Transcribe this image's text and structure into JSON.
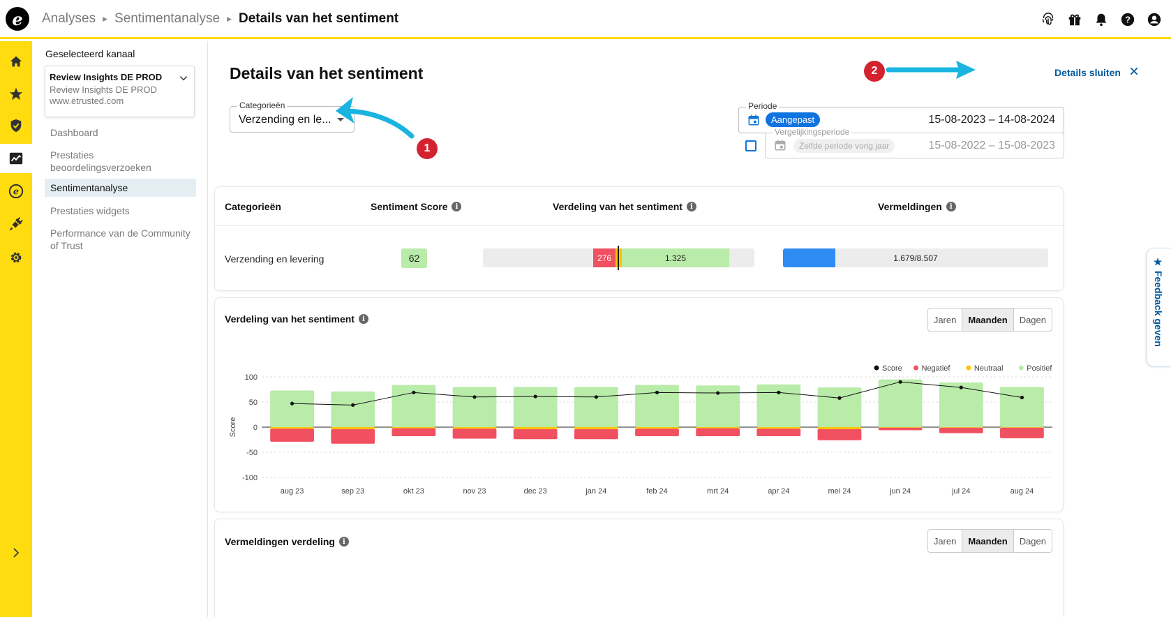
{
  "app": {
    "logo_letter": "e",
    "breadcrumb": [
      "Analyses",
      "Sentimentanalyse",
      "Details van het sentiment"
    ]
  },
  "topbar_icons": [
    "fingerprint-icon",
    "gift-icon",
    "bell-icon",
    "help-icon",
    "account-icon"
  ],
  "rail_icons": [
    "home-icon",
    "star-icon",
    "shield-check-icon",
    "analytics-icon",
    "etrusted-coin-icon",
    "plug-icon",
    "gear-icon",
    "chevron-right-icon"
  ],
  "sidebar": {
    "channel_label": "Geselecteerd kanaal",
    "channel_name": "Review Insights DE PROD",
    "channel_sub": "Review Insights DE PROD",
    "channel_url": "www.etrusted.com",
    "items": [
      {
        "label": "Dashboard",
        "active": false
      },
      {
        "label": "Prestaties beoordelingsverzoeken",
        "active": false
      },
      {
        "label": "Sentimentanalyse",
        "active": true
      },
      {
        "label": "Prestaties widgets",
        "active": false
      },
      {
        "label": "Performance van de Community of Trust",
        "active": false
      }
    ]
  },
  "main": {
    "title": "Details van het sentiment",
    "close_label": "Details sluiten",
    "categories_label": "Categorieën",
    "categories_value": "Verzending en le...",
    "periode_label": "Periode",
    "periode_pill": "Aangepast",
    "periode_range": "15-08-2023 – 14-08-2024",
    "vergelijk_label": "Vergelijkingsperiode",
    "vergelijk_pill": "Zelfde periode vorig jaar",
    "vergelijk_range": "15-08-2022 – 15-08-2023",
    "annotations": [
      "1",
      "2"
    ]
  },
  "summary_table": {
    "headers": [
      "Categorieën",
      "Sentiment Score",
      "Verdeling van het sentiment",
      "Vermeldingen"
    ],
    "row": {
      "category": "Verzending en levering",
      "score": "62",
      "negative": "276",
      "positive": "1.325",
      "mentions": "1.679/8.507",
      "mentions_fraction": 0.197
    }
  },
  "distribution_card": {
    "title": "Verdeling van het sentiment",
    "toggle": [
      "Jaren",
      "Maanden",
      "Dagen"
    ],
    "toggle_active": "Maanden"
  },
  "mentions_card": {
    "title": "Vermeldingen verdeling",
    "toggle": [
      "Jaren",
      "Maanden",
      "Dagen"
    ],
    "toggle_active": "Maanden"
  },
  "feedback_label": "★ Feedback geven",
  "colors": {
    "accent_yellow": "#ffdc0f",
    "link_blue": "#005aa0",
    "negative": "#f05060",
    "neutral": "#ffc400",
    "positive": "#b9eba9",
    "mentions_blue": "#2f8cf5",
    "annotation_arrow": "#19b4e0",
    "badge_red": "#d4232f"
  },
  "chart_data": {
    "type": "bar",
    "ylabel": "Score",
    "ylim": [
      -100,
      100
    ],
    "yticks": [
      100,
      50,
      0,
      -50,
      -100
    ],
    "grid": true,
    "legend_position": "top-right",
    "categories": [
      "aug 23",
      "sep 23",
      "okt 23",
      "nov 23",
      "dec 23",
      "jan 24",
      "feb 24",
      "mrt 24",
      "apr 24",
      "mei 24",
      "jun 24",
      "jul 24",
      "aug 24"
    ],
    "series": [
      {
        "name": "Score",
        "kind": "line",
        "color": "#111111",
        "values": [
          47,
          44,
          69,
          60,
          61,
          60,
          69,
          68,
          69,
          58,
          90,
          79,
          59
        ]
      },
      {
        "name": "Negatief",
        "kind": "bar",
        "color": "#f05060",
        "values": [
          -26,
          -29,
          -16,
          -20,
          -20,
          -20,
          -15,
          -16,
          -15,
          -22,
          -5,
          -11,
          -21
        ]
      },
      {
        "name": "Neutraal",
        "kind": "bar",
        "color": "#ffc400",
        "values": [
          -3,
          -4,
          -2,
          -3,
          -4,
          -4,
          -3,
          -2,
          -3,
          -4,
          -1,
          -1,
          -1
        ]
      },
      {
        "name": "Positief",
        "kind": "bar",
        "color": "#b9eba9",
        "values": [
          73,
          71,
          84,
          80,
          80,
          80,
          84,
          83,
          85,
          79,
          95,
          89,
          80
        ]
      }
    ]
  }
}
